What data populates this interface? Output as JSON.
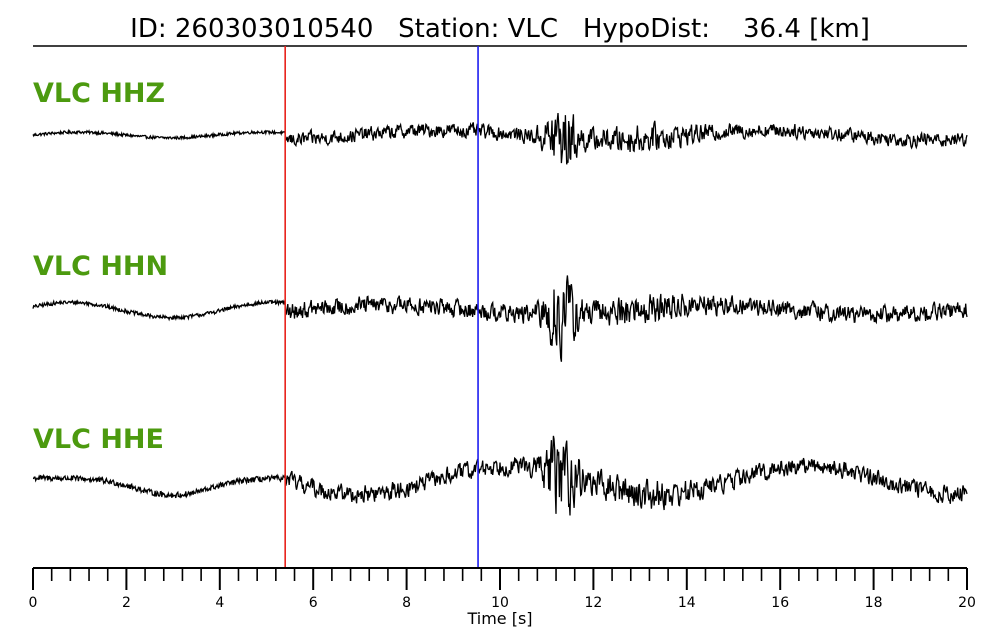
{
  "header": {
    "id_text": "ID: 260303010540",
    "station_text": "Station: VLC",
    "hypodist_label": "HypoDist:",
    "hypodist_value": "36.4 [km]"
  },
  "chart_data": {
    "type": "line",
    "title": "ID: 260303010540   Station: VLC   HypoDist:    36.4 [km]",
    "xlabel": "Time [s]",
    "ylabel": "",
    "xlim": [
      0,
      20
    ],
    "x_major_ticks": [
      0,
      2,
      4,
      6,
      8,
      10,
      12,
      14,
      16,
      18,
      20
    ],
    "x_minor_tick_step": 0.4,
    "x_tick_labels": [
      "0",
      "2",
      "4",
      "6",
      "8",
      "10",
      "12",
      "14",
      "16",
      "18",
      "20"
    ],
    "grid": false,
    "legend": "none",
    "markers": [
      {
        "time_s": 5.4,
        "color": "#e8221b"
      },
      {
        "time_s": 9.53,
        "color": "#1d1df0"
      }
    ],
    "series": [
      {
        "name": "VLC HHZ",
        "label_color": "#4c9a0f",
        "noise_amp": 0.04,
        "pre_noise_amp": 0.015,
        "burst_amp": 0.5
      },
      {
        "name": "VLC HHN",
        "label_color": "#4c9a0f",
        "noise_amp": 0.05,
        "pre_noise_amp": 0.02,
        "burst_amp": 0.6
      },
      {
        "name": "VLC HHE",
        "label_color": "#4c9a0f",
        "noise_amp": 0.05,
        "pre_noise_amp": 0.03,
        "burst_amp": 0.6
      }
    ]
  }
}
